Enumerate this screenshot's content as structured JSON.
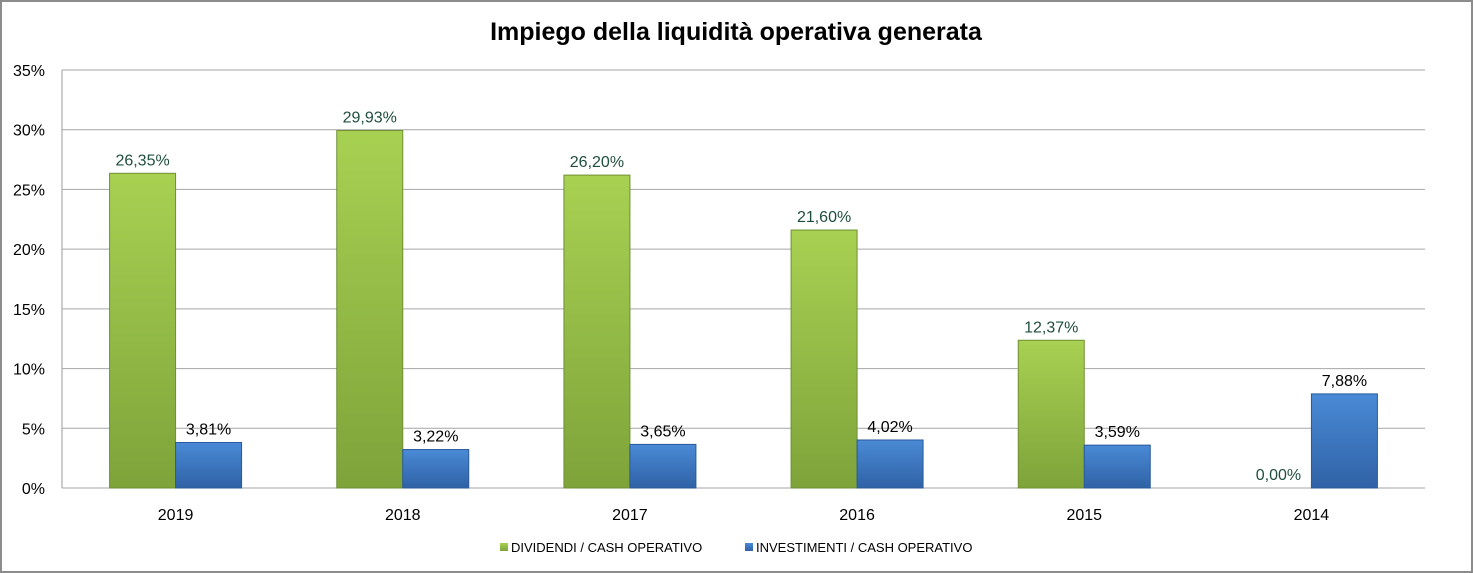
{
  "chart_data": {
    "type": "bar",
    "title": "Impiego della liquidità operativa generata",
    "categories": [
      "2019",
      "2018",
      "2017",
      "2016",
      "2015",
      "2014"
    ],
    "series": [
      {
        "name": "DIVIDENDI / CASH OPERATIVO",
        "color": "#92c140",
        "values": [
          26.35,
          29.93,
          26.2,
          21.6,
          12.37,
          0.0
        ],
        "labels": [
          "26,35%",
          "29,93%",
          "26,20%",
          "21,60%",
          "12,37%",
          "0,00%"
        ]
      },
      {
        "name": "INVESTIMENTI / CASH OPERATIVO",
        "color": "#3a78c3",
        "values": [
          3.81,
          3.22,
          3.65,
          4.02,
          3.59,
          7.88
        ],
        "labels": [
          "3,81%",
          "3,22%",
          "3,65%",
          "4,02%",
          "3,59%",
          "7,88%"
        ]
      }
    ],
    "yticks": [
      "0%",
      "5%",
      "10%",
      "15%",
      "20%",
      "25%",
      "30%",
      "35%"
    ],
    "ylim": [
      0,
      35
    ],
    "xlabel": "",
    "ylabel": "",
    "grid": true,
    "legend": "bottom"
  }
}
